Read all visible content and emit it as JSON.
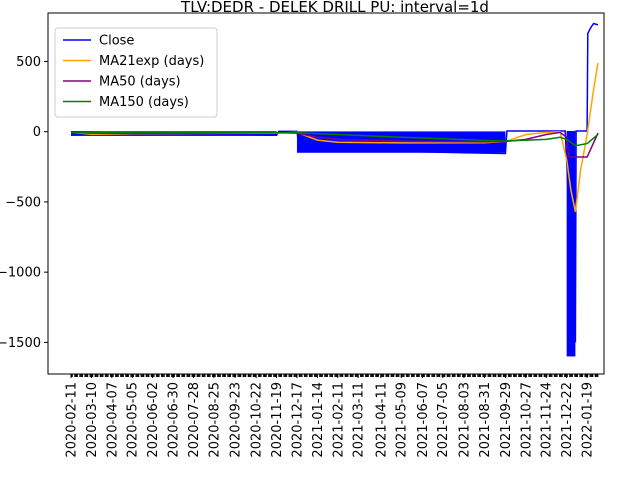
{
  "chart_data": {
    "type": "line",
    "title": "TLV:DEDR - DELEK DRILL PU: interval=1d",
    "xlabel": "",
    "ylabel": "",
    "x_tick_labels": [
      "2020-02-11",
      "2020-03-10",
      "2020-04-07",
      "2020-05-05",
      "2020-06-02",
      "2020-06-30",
      "2020-07-28",
      "2020-08-25",
      "2020-09-23",
      "2020-10-22",
      "2020-11-19",
      "2020-12-17",
      "2021-01-14",
      "2021-02-11",
      "2021-03-11",
      "2021-04-11",
      "2021-05-09",
      "2021-06-07",
      "2021-07-05",
      "2021-08-03",
      "2021-08-31",
      "2021-09-29",
      "2021-10-27",
      "2021-11-24",
      "2021-12-22",
      "2022-01-19"
    ],
    "y_ticks": [
      500,
      0,
      -500,
      -1000,
      -1500
    ],
    "y_tick_labels": [
      "500",
      "0",
      "−500",
      "−1000",
      "−1500"
    ],
    "ylim": [
      -1725,
      845
    ],
    "legend_position": "upper left",
    "series": [
      {
        "name": "Close",
        "color": "#0000ff",
        "bands": [
          {
            "from": "2020-02-11",
            "to": "2020-11-19",
            "min": -30,
            "max": 3
          },
          {
            "from": "2020-12-17",
            "to": "2021-09-29",
            "min": -150,
            "max": 2
          },
          {
            "from": "2021-12-22",
            "to": "2022-01-03",
            "min": -1600,
            "max": 5
          }
        ],
        "points": [
          [
            "2020-02-11",
            0
          ],
          [
            "2020-11-19",
            -25
          ],
          [
            "2020-11-22",
            2
          ],
          [
            "2020-12-17",
            2
          ],
          [
            "2020-12-20",
            -110
          ],
          [
            "2021-02-11",
            -125
          ],
          [
            "2021-05-09",
            -140
          ],
          [
            "2021-08-03",
            -150
          ],
          [
            "2021-09-29",
            -155
          ],
          [
            "2021-10-01",
            5
          ],
          [
            "2021-11-24",
            5
          ],
          [
            "2021-12-20",
            5
          ],
          [
            "2022-01-03",
            -1500
          ],
          [
            "2022-01-04",
            5
          ],
          [
            "2022-01-19",
            5
          ],
          [
            "2022-01-20",
            700
          ],
          [
            "2022-01-24",
            740
          ],
          [
            "2022-01-28",
            770
          ],
          [
            "2022-02-03",
            760
          ]
        ]
      },
      {
        "name": "MA21exp (days)",
        "color": "#ffa500",
        "points": [
          [
            "2020-02-11",
            -5
          ],
          [
            "2020-03-10",
            -18
          ],
          [
            "2020-05-05",
            -15
          ],
          [
            "2020-08-25",
            -12
          ],
          [
            "2020-11-19",
            -10
          ],
          [
            "2020-12-17",
            -5
          ],
          [
            "2021-01-14",
            -60
          ],
          [
            "2021-02-11",
            -75
          ],
          [
            "2021-05-09",
            -80
          ],
          [
            "2021-08-31",
            -78
          ],
          [
            "2021-09-29",
            -70
          ],
          [
            "2021-10-27",
            -20
          ],
          [
            "2021-11-24",
            -5
          ],
          [
            "2021-12-13",
            0
          ],
          [
            "2021-12-22",
            -200
          ],
          [
            "2021-12-28",
            -420
          ],
          [
            "2022-01-03",
            -570
          ],
          [
            "2022-01-10",
            -280
          ],
          [
            "2022-01-19",
            -20
          ],
          [
            "2022-01-28",
            300
          ],
          [
            "2022-02-03",
            490
          ]
        ]
      },
      {
        "name": "MA50 (days)",
        "color": "#800080",
        "points": [
          [
            "2020-02-11",
            -5
          ],
          [
            "2020-03-10",
            -10
          ],
          [
            "2020-05-05",
            -12
          ],
          [
            "2020-08-25",
            -10
          ],
          [
            "2020-11-19",
            -8
          ],
          [
            "2020-12-17",
            -10
          ],
          [
            "2021-01-14",
            -40
          ],
          [
            "2021-02-11",
            -55
          ],
          [
            "2021-05-09",
            -68
          ],
          [
            "2021-08-31",
            -72
          ],
          [
            "2021-09-29",
            -70
          ],
          [
            "2021-10-27",
            -55
          ],
          [
            "2021-11-24",
            -20
          ],
          [
            "2021-12-13",
            -5
          ],
          [
            "2021-12-22",
            -40
          ],
          [
            "2021-12-25",
            -180
          ],
          [
            "2022-01-19",
            -180
          ],
          [
            "2022-02-03",
            -10
          ]
        ]
      },
      {
        "name": "MA150 (days)",
        "color": "#008000",
        "points": [
          [
            "2020-02-11",
            -5
          ],
          [
            "2020-05-05",
            -8
          ],
          [
            "2020-08-25",
            -8
          ],
          [
            "2020-12-17",
            -8
          ],
          [
            "2021-02-11",
            -20
          ],
          [
            "2021-05-09",
            -40
          ],
          [
            "2021-08-31",
            -62
          ],
          [
            "2021-09-29",
            -66
          ],
          [
            "2021-11-24",
            -55
          ],
          [
            "2021-12-13",
            -40
          ],
          [
            "2021-12-22",
            -55
          ],
          [
            "2022-01-03",
            -100
          ],
          [
            "2022-01-19",
            -85
          ],
          [
            "2022-02-03",
            -20
          ]
        ]
      }
    ]
  }
}
